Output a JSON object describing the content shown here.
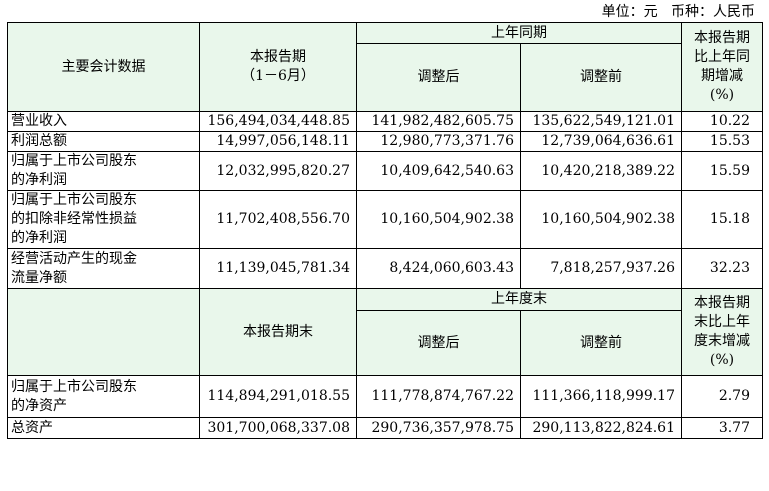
{
  "unit_line": "单位：元   币种：人民币",
  "section1": {
    "header": {
      "col1": "主要会计数据",
      "col2_line1": "本报告期",
      "col2_line2": "（1－6月）",
      "group": "上年同期",
      "adjusted_after": "调整后",
      "adjusted_before": "调整前",
      "change_line1": "本报告期",
      "change_line2": "比上年同",
      "change_line3": "期增减",
      "change_line4": "(%)"
    },
    "rows": [
      {
        "label": [
          "营业收入"
        ],
        "current": "156,494,034,448.85",
        "after": "141,982,482,605.75",
        "before": "135,622,549,121.01",
        "change": "10.22"
      },
      {
        "label": [
          "利润总额"
        ],
        "current": "14,997,056,148.11",
        "after": "12,980,773,371.76",
        "before": "12,739,064,636.61",
        "change": "15.53"
      },
      {
        "label": [
          "归属于上市公司股东",
          "的净利润"
        ],
        "current": "12,032,995,820.27",
        "after": "10,409,642,540.63",
        "before": "10,420,218,389.22",
        "change": "15.59"
      },
      {
        "label": [
          "归属于上市公司股东",
          "的扣除非经常性损益",
          "的净利润"
        ],
        "current": "11,702,408,556.70",
        "after": "10,160,504,902.38",
        "before": "10,160,504,902.38",
        "change": "15.18"
      },
      {
        "label": [
          "经营活动产生的现金",
          "流量净额"
        ],
        "current": "11,139,045,781.34",
        "after": "8,424,060,603.43",
        "before": "7,818,257,937.26",
        "change": "32.23"
      }
    ]
  },
  "section2": {
    "header": {
      "col2": "本报告期末",
      "group": "上年度末",
      "adjusted_after": "调整后",
      "adjusted_before": "调整前",
      "change_line1": "本报告期",
      "change_line2": "末比上年",
      "change_line3": "度末增减",
      "change_line4": "(%)"
    },
    "rows": [
      {
        "label": [
          "归属于上市公司股东",
          "的净资产"
        ],
        "current": "114,894,291,018.55",
        "after": "111,778,874,767.22",
        "before": "111,366,118,999.17",
        "change": "2.79"
      },
      {
        "label": [
          "总资产"
        ],
        "current": "301,700,068,337.08",
        "after": "290,736,357,978.75",
        "before": "290,113,822,824.61",
        "change": "3.77"
      }
    ]
  }
}
